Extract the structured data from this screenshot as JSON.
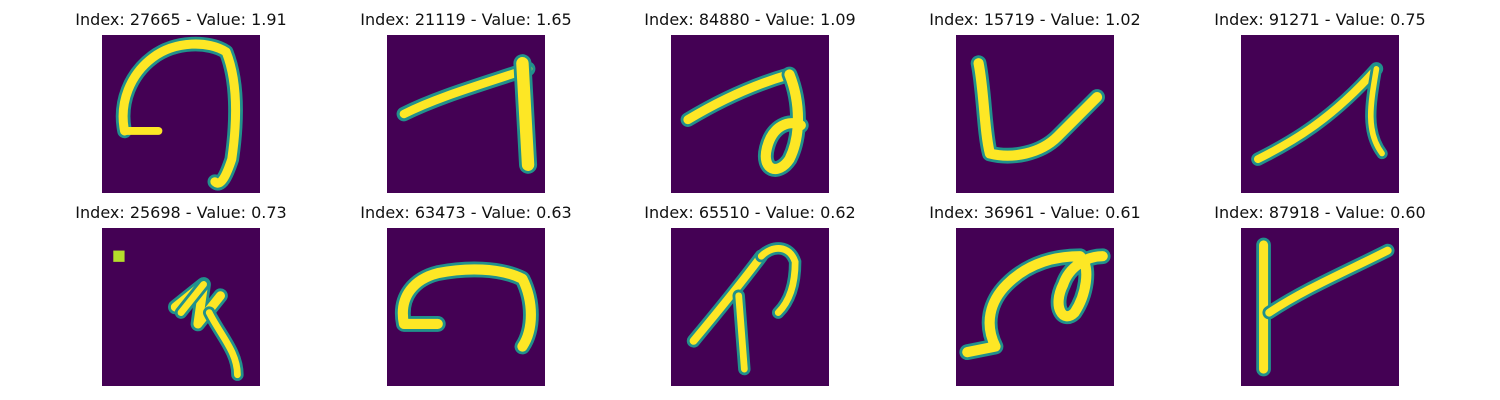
{
  "panels": [
    {
      "caption": "Index: 27665 - Value: 1.91",
      "colormap": "viridis"
    },
    {
      "caption": "Index: 21119 - Value: 1.65",
      "colormap": "viridis"
    },
    {
      "caption": "Index: 84880 - Value: 1.09",
      "colormap": "viridis"
    },
    {
      "caption": "Index: 15719 - Value: 1.02",
      "colormap": "viridis"
    },
    {
      "caption": "Index: 91271 - Value: 0.75",
      "colormap": "viridis"
    },
    {
      "caption": "Index: 25698 - Value: 0.73",
      "colormap": "viridis"
    },
    {
      "caption": "Index: 63473 - Value: 0.63",
      "colormap": "viridis"
    },
    {
      "caption": "Index: 65510 - Value: 0.62",
      "colormap": "viridis"
    },
    {
      "caption": "Index: 36961 - Value: 0.61",
      "colormap": "viridis"
    },
    {
      "caption": "Index: 87918 - Value: 0.60",
      "colormap": "viridis"
    }
  ],
  "colors": {
    "background": "#440154",
    "stroke_mid": "#21918c",
    "stroke_high": "#fde725"
  }
}
